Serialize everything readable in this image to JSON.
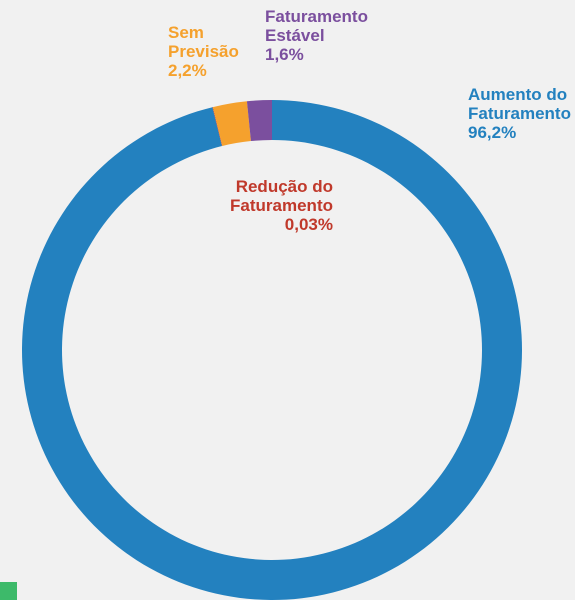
{
  "chart_data": {
    "type": "donut",
    "categories": [
      "Aumento do Faturamento",
      "Redução do Faturamento",
      "Sem Previsão",
      "Faturamento Estável"
    ],
    "values": [
      96.2,
      0.03,
      2.2,
      1.6
    ],
    "value_labels": [
      "96,2%",
      "0,03%",
      "2,2%",
      "1,6%"
    ],
    "colors": [
      "#2381bf",
      "#c0392b",
      "#f5a12d",
      "#7b4f9e"
    ]
  }
}
